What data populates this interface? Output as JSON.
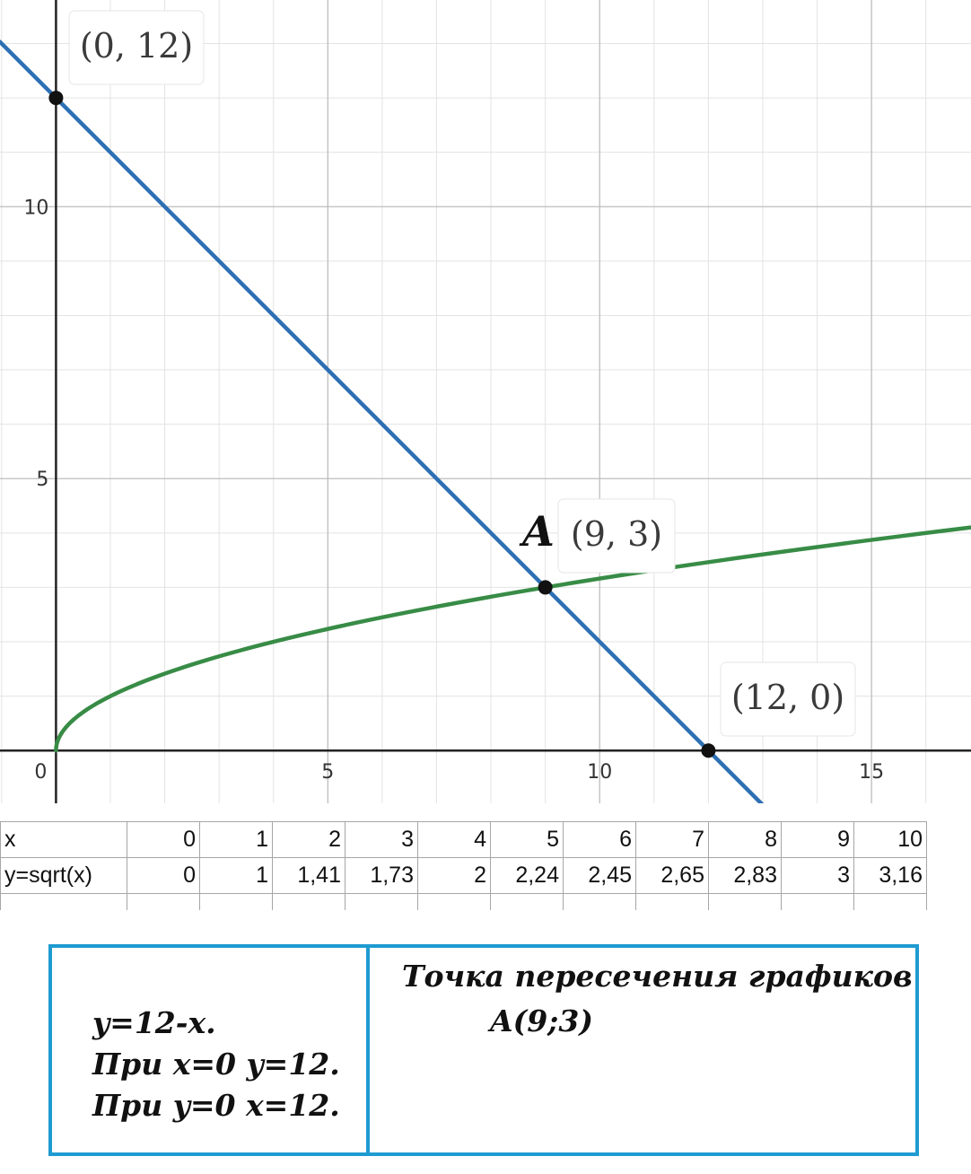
{
  "chart_data": {
    "type": "line",
    "xlim": [
      -1.03,
      16.83
    ],
    "ylim": [
      -0.97,
      13.8
    ],
    "grid": true,
    "x_ticks": [
      {
        "value": 0,
        "label": "0"
      },
      {
        "value": 5,
        "label": "5"
      },
      {
        "value": 10,
        "label": "10"
      },
      {
        "value": 15,
        "label": "15"
      }
    ],
    "y_ticks": [
      {
        "value": 5,
        "label": "5"
      },
      {
        "value": 10,
        "label": "10"
      }
    ],
    "series": [
      {
        "formula": "y = 12 - x",
        "color": "#2d70b3",
        "x": [
          -1.03,
          13.03
        ],
        "y": [
          13.03,
          -1.03
        ]
      },
      {
        "formula": "y = sqrt(x)",
        "color": "#388c46",
        "x_range": [
          0,
          16.83
        ],
        "samples": 220
      }
    ],
    "points": [
      {
        "x": 0,
        "y": 12,
        "label": "(0, 12)"
      },
      {
        "x": 9,
        "y": 3,
        "prefix": "A",
        "label": "(9, 3)"
      },
      {
        "x": 12,
        "y": 0,
        "label": "(12, 0)"
      }
    ]
  },
  "table": {
    "rows": [
      [
        "x",
        "0",
        "1",
        "2",
        "3",
        "4",
        "5",
        "6",
        "7",
        "8",
        "9",
        "10"
      ],
      [
        "y=sqrt(x)",
        "0",
        "1",
        "1,41",
        "1,73",
        "2",
        "2,24",
        "2,45",
        "2,65",
        "2,83",
        "3",
        "3,16"
      ]
    ]
  },
  "note": {
    "left_lines": [
      "y=12-x.",
      "При x=0  y=12.",
      "При y=0 x=12."
    ],
    "right_lines": [
      "Точка пересечения графиков",
      "A(9;3)"
    ]
  }
}
